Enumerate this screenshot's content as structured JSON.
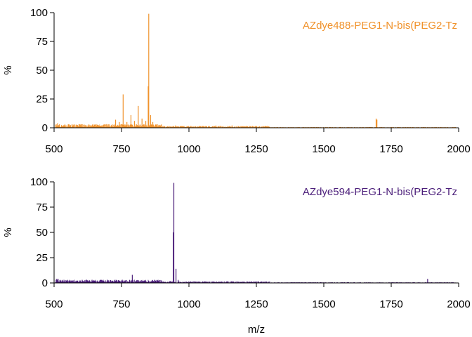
{
  "chart_data": [
    {
      "type": "line",
      "legend": "AZdye488-PEG1-N-bis(PEG2-Tz",
      "color": "#F0922B",
      "ylabel": "%",
      "xlabel": "",
      "xlim": [
        500,
        2000
      ],
      "ylim": [
        0,
        100
      ],
      "xticks": [
        "500",
        "750",
        "1000",
        "1250",
        "1500",
        "1750",
        "2000"
      ],
      "yticks": [
        "0",
        "25",
        "50",
        "75",
        "100"
      ],
      "noise": {
        "x_start": 505,
        "x_end": 1990,
        "seed": 17
      },
      "peaks": [
        {
          "x": 508,
          "y": 3
        },
        {
          "x": 513,
          "y": 4
        },
        {
          "x": 520,
          "y": 3
        },
        {
          "x": 555,
          "y": 3
        },
        {
          "x": 600,
          "y": 3
        },
        {
          "x": 655,
          "y": 3
        },
        {
          "x": 701,
          "y": 3
        },
        {
          "x": 728,
          "y": 7
        },
        {
          "x": 742,
          "y": 5
        },
        {
          "x": 756,
          "y": 29
        },
        {
          "x": 770,
          "y": 5
        },
        {
          "x": 785,
          "y": 11
        },
        {
          "x": 798,
          "y": 6
        },
        {
          "x": 812,
          "y": 19
        },
        {
          "x": 826,
          "y": 8
        },
        {
          "x": 840,
          "y": 6
        },
        {
          "x": 849,
          "y": 36
        },
        {
          "x": 851,
          "y": 99
        },
        {
          "x": 858,
          "y": 11
        },
        {
          "x": 866,
          "y": 5
        },
        {
          "x": 880,
          "y": 3
        },
        {
          "x": 950,
          "y": 2
        },
        {
          "x": 1100,
          "y": 2
        },
        {
          "x": 1160,
          "y": 2
        },
        {
          "x": 1694,
          "y": 8
        },
        {
          "x": 1697,
          "y": 7
        }
      ]
    },
    {
      "type": "line",
      "legend": "AZdye594-PEG1-N-bis(PEG2-Tz",
      "color": "#4B1E7A",
      "ylabel": "%",
      "xlabel": "m/z",
      "xlim": [
        500,
        2000
      ],
      "ylim": [
        0,
        100
      ],
      "xticks": [
        "500",
        "750",
        "1000",
        "1250",
        "1500",
        "1750",
        "2000"
      ],
      "yticks": [
        "0",
        "25",
        "50",
        "75",
        "100"
      ],
      "noise": {
        "x_start": 505,
        "x_end": 1990,
        "seed": 41
      },
      "peaks": [
        {
          "x": 510,
          "y": 4
        },
        {
          "x": 515,
          "y": 4
        },
        {
          "x": 522,
          "y": 3
        },
        {
          "x": 560,
          "y": 2
        },
        {
          "x": 620,
          "y": 2
        },
        {
          "x": 700,
          "y": 2
        },
        {
          "x": 790,
          "y": 8
        },
        {
          "x": 850,
          "y": 2
        },
        {
          "x": 930,
          "y": 2
        },
        {
          "x": 942,
          "y": 50
        },
        {
          "x": 944,
          "y": 99
        },
        {
          "x": 952,
          "y": 14
        },
        {
          "x": 960,
          "y": 3
        },
        {
          "x": 1050,
          "y": 1
        },
        {
          "x": 1885,
          "y": 4
        }
      ]
    }
  ]
}
